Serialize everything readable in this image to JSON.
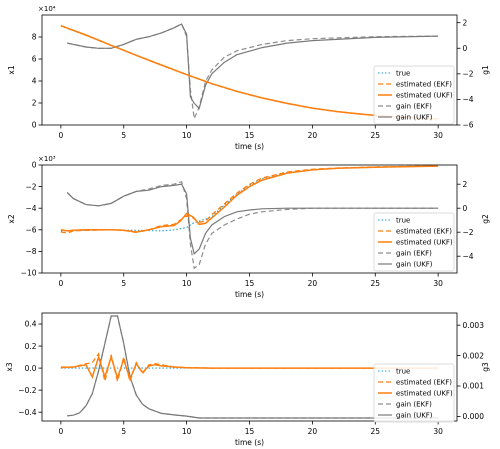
{
  "colors": {
    "true": "#1f9fd1",
    "ekf": "#ff7f0e",
    "ukf": "#ff7f0e",
    "gain_ekf": "#8c8c8c",
    "gain_ukf": "#7a7a7a"
  },
  "chart_data": [
    {
      "type": "line",
      "xlabel": "time (s)",
      "ylabel": "x1",
      "ylabel2": "g1",
      "y_offset_label": "×10⁴",
      "xlim": [
        -1.5,
        31.5
      ],
      "ylim": [
        0,
        100000
      ],
      "y2lim": [
        -6,
        2.6
      ],
      "xticks": [
        0,
        5,
        10,
        15,
        20,
        25,
        30
      ],
      "yticks": [
        0,
        20000,
        40000,
        60000,
        80000
      ],
      "ytick_labels": [
        "0",
        "2",
        "4",
        "6",
        "8"
      ],
      "y2ticks": [
        -6,
        -4,
        -2,
        0,
        2
      ],
      "legend": [
        "true",
        "estimated (EKF)",
        "estimated (UKF)",
        "gain (EKF)",
        "gain (UKF)"
      ],
      "legend_position": "lower-right",
      "series": [
        {
          "name": "true",
          "x": [
            0,
            2,
            4,
            6,
            8,
            10,
            12,
            14,
            16,
            18,
            20,
            22,
            24,
            26,
            28,
            30
          ],
          "y": [
            90000,
            81500,
            72300,
            63200,
            54300,
            45600,
            37500,
            30500,
            24500,
            19500,
            15300,
            12100,
            9600,
            7800,
            6400,
            5400
          ]
        },
        {
          "name": "estimated (EKF)",
          "x": [
            0,
            2,
            4,
            6,
            8,
            10,
            12,
            14,
            16,
            18,
            20,
            22,
            24,
            26,
            28,
            30
          ],
          "y": [
            90200,
            81700,
            72400,
            63300,
            54400,
            45700,
            37500,
            30500,
            24500,
            19500,
            15300,
            12100,
            9600,
            7800,
            6400,
            5400
          ]
        },
        {
          "name": "estimated (UKF)",
          "x": [
            0,
            2,
            4,
            6,
            8,
            10,
            12,
            14,
            16,
            18,
            20,
            22,
            24,
            26,
            28,
            30
          ],
          "y": [
            90300,
            81800,
            72500,
            63400,
            54500,
            45800,
            37600,
            30600,
            24600,
            19600,
            15400,
            12200,
            9700,
            7900,
            6500,
            5500
          ]
        },
        {
          "name": "gain (EKF)",
          "axis": "right",
          "x": [
            0.5,
            1,
            2,
            3,
            4,
            5,
            6,
            7,
            8,
            9,
            9.6,
            10,
            10.3,
            10.6,
            11,
            11.5,
            12,
            13,
            14,
            16,
            18,
            20,
            25,
            30
          ],
          "y": [
            0.4,
            0.3,
            0.1,
            0,
            0,
            0.3,
            0.7,
            0.9,
            1.2,
            1.6,
            1.9,
            0.9,
            -3.2,
            -5.5,
            -4.6,
            -2.6,
            -1.7,
            -0.7,
            -0.2,
            0.3,
            0.6,
            0.75,
            0.9,
            0.95
          ]
        },
        {
          "name": "gain (UKF)",
          "axis": "right",
          "x": [
            0.5,
            1,
            2,
            3,
            4,
            5,
            6,
            7,
            8,
            9,
            9.6,
            10,
            10.3,
            10.6,
            11,
            11.5,
            12,
            13,
            14,
            16,
            18,
            20,
            25,
            30
          ],
          "y": [
            0.4,
            0.3,
            0.1,
            0,
            0,
            0.3,
            0.7,
            0.9,
            1.2,
            1.6,
            1.9,
            1.1,
            -3.8,
            -4.3,
            -4.7,
            -2.9,
            -2.0,
            -1.1,
            -0.5,
            0.05,
            0.4,
            0.6,
            0.85,
            0.95
          ]
        }
      ]
    },
    {
      "type": "line",
      "xlabel": "time (s)",
      "ylabel": "x2",
      "ylabel2": "g2",
      "y_offset_label": "×10³",
      "xlim": [
        -1.5,
        31.5
      ],
      "ylim": [
        -10000,
        0
      ],
      "y2lim": [
        -5.4,
        3.6
      ],
      "xticks": [
        0,
        5,
        10,
        15,
        20,
        25,
        30
      ],
      "yticks": [
        -10000,
        -8000,
        -6000,
        -4000,
        -2000,
        0
      ],
      "ytick_labels": [
        "−10",
        "−8",
        "−6",
        "−4",
        "−2",
        "0"
      ],
      "y2ticks": [
        -4,
        -2,
        0,
        2
      ],
      "legend": [
        "true",
        "estimated (EKF)",
        "estimated (UKF)",
        "gain (EKF)",
        "gain (UKF)"
      ],
      "legend_position": "center-right",
      "series": [
        {
          "name": "true",
          "x": [
            0,
            2,
            4,
            6,
            8,
            9,
            10,
            10.5,
            11,
            12,
            13,
            14,
            15,
            16,
            18,
            20,
            22,
            25,
            30
          ],
          "y": [
            -6100,
            -6050,
            -6000,
            -6050,
            -6100,
            -6000,
            -5800,
            -5400,
            -5200,
            -4800,
            -3700,
            -2700,
            -1900,
            -1300,
            -700,
            -450,
            -300,
            -200,
            -100
          ]
        },
        {
          "name": "estimated (EKF)",
          "x": [
            0,
            0.5,
            1,
            2,
            4,
            5,
            6,
            7,
            8,
            9,
            9.5,
            10,
            10.5,
            11,
            11.5,
            12,
            13,
            14,
            15,
            16,
            18,
            20,
            22,
            25,
            30
          ],
          "y": [
            -6200,
            -6300,
            -6100,
            -6050,
            -6000,
            -6050,
            -6250,
            -6000,
            -5600,
            -5500,
            -5100,
            -4700,
            -4900,
            -5300,
            -5200,
            -4600,
            -3600,
            -2600,
            -1800,
            -1200,
            -650,
            -400,
            -280,
            -180,
            -90
          ]
        },
        {
          "name": "estimated (UKF)",
          "x": [
            0,
            0.5,
            1,
            2,
            4,
            5,
            6,
            7,
            8,
            9,
            9.5,
            10,
            10.5,
            11,
            11.5,
            12,
            13,
            14,
            15,
            16,
            18,
            20,
            22,
            25,
            30
          ],
          "y": [
            -6000,
            -6100,
            -6050,
            -6000,
            -6000,
            -6050,
            -6200,
            -6000,
            -5700,
            -5600,
            -5200,
            -4500,
            -4800,
            -5500,
            -5400,
            -4900,
            -3900,
            -2800,
            -2000,
            -1400,
            -750,
            -450,
            -300,
            -200,
            -100
          ]
        },
        {
          "name": "gain (EKF)",
          "axis": "right",
          "x": [
            0.5,
            1,
            2,
            3,
            4,
            5,
            6,
            7,
            8,
            9,
            9.6,
            10,
            10.3,
            10.6,
            11,
            11.5,
            12,
            13,
            14,
            15,
            16,
            18,
            20,
            25,
            30
          ],
          "y": [
            1.3,
            0.8,
            0.3,
            0.2,
            0.4,
            1.0,
            1.4,
            1.6,
            1.9,
            2.0,
            2.2,
            0.8,
            -3.0,
            -5.0,
            -4.7,
            -3.0,
            -2.1,
            -1.4,
            -0.9,
            -0.5,
            -0.3,
            -0.1,
            0,
            0,
            0
          ]
        },
        {
          "name": "gain (UKF)",
          "axis": "right",
          "x": [
            0.5,
            1,
            2,
            3,
            4,
            5,
            6,
            7,
            8,
            9,
            9.6,
            10,
            10.3,
            10.6,
            11,
            11.5,
            12,
            13,
            14,
            15,
            16,
            18,
            20,
            25,
            30
          ],
          "y": [
            1.3,
            0.8,
            0.3,
            0.2,
            0.4,
            1.0,
            1.4,
            1.5,
            1.8,
            1.9,
            2.0,
            1.2,
            -2.5,
            -3.8,
            -3.4,
            -2.1,
            -1.4,
            -0.7,
            -0.3,
            -0.15,
            -0.05,
            0,
            0,
            0,
            0
          ]
        }
      ]
    },
    {
      "type": "line",
      "xlabel": "time (s)",
      "ylabel": "x3",
      "ylabel2": "g3",
      "y_offset_label": "",
      "xlim": [
        -1.5,
        31.5
      ],
      "ylim": [
        -0.48,
        0.5
      ],
      "y2lim": [
        -0.00015,
        0.0034
      ],
      "xticks": [
        0,
        5,
        10,
        15,
        20,
        25,
        30
      ],
      "yticks": [
        -0.4,
        -0.2,
        0.0,
        0.2,
        0.4
      ],
      "ytick_labels": [
        "−0.4",
        "−0.2",
        "0.0",
        "0.2",
        "0.4"
      ],
      "y2ticks": [
        0,
        0.001,
        0.002,
        0.003
      ],
      "y2tick_labels": [
        "0.000",
        "0.001",
        "0.002",
        "0.003"
      ],
      "legend": [
        "true",
        "estimated (EKF)",
        "estimated (UKF)",
        "gain (EKF)",
        "gain (UKF)"
      ],
      "legend_position": "lower-right",
      "series": [
        {
          "name": "true",
          "x": [
            0,
            30
          ],
          "y": [
            0,
            0
          ]
        },
        {
          "name": "estimated (EKF)",
          "x": [
            0,
            1,
            2,
            2.5,
            3,
            3.5,
            4,
            4.5,
            5,
            5.5,
            6,
            6.5,
            7,
            7.5,
            8,
            8.5,
            9,
            10,
            12,
            15,
            30
          ],
          "y": [
            0.01,
            0.01,
            0.04,
            0.05,
            0.13,
            -0.12,
            0.12,
            -0.12,
            0.1,
            -0.12,
            0.05,
            -0.05,
            0.03,
            0.04,
            0.03,
            0.02,
            0.01,
            0.005,
            0,
            0,
            0
          ]
        },
        {
          "name": "estimated (UKF)",
          "x": [
            0,
            1,
            2,
            2.5,
            3,
            3.5,
            4,
            4.5,
            5,
            5.5,
            6,
            6.5,
            7,
            7.5,
            8,
            8.5,
            9,
            10,
            12,
            15,
            30
          ],
          "y": [
            0.005,
            0.01,
            0.03,
            -0.08,
            0.1,
            -0.08,
            0.1,
            -0.09,
            0.08,
            -0.1,
            0.04,
            -0.04,
            0.02,
            0.03,
            0.02,
            0.015,
            0.01,
            0.004,
            0,
            0,
            0
          ]
        },
        {
          "name": "gain (EKF)",
          "axis": "right",
          "x": [
            0.5,
            1,
            1.5,
            2,
            2.5,
            3,
            3.5,
            4,
            4.5,
            5,
            5.5,
            6,
            6.5,
            7,
            8,
            9,
            10,
            11,
            12,
            15,
            20,
            25,
            30
          ],
          "y": [
            2e-05,
            4e-05,
            0.00012,
            0.00035,
            0.00075,
            0.0015,
            0.0024,
            0.0033,
            0.0033,
            0.0024,
            0.0013,
            0.0007,
            0.0004,
            0.00025,
            0.0001,
            5e-05,
            1e-05,
            -5e-05,
            -5e-05,
            -5e-05,
            -5e-05,
            -5e-05,
            -5e-05
          ]
        },
        {
          "name": "gain (UKF)",
          "axis": "right",
          "x": [
            0.5,
            1,
            1.5,
            2,
            2.5,
            3,
            3.5,
            4,
            4.5,
            5,
            5.5,
            6,
            6.5,
            7,
            8,
            9,
            10,
            11,
            12,
            15,
            20,
            25,
            30
          ],
          "y": [
            2e-05,
            4e-05,
            0.00012,
            0.00035,
            0.00075,
            0.0015,
            0.0024,
            0.0033,
            0.0033,
            0.0024,
            0.0013,
            0.0007,
            0.0004,
            0.00025,
            0.0001,
            5e-05,
            1e-05,
            -5e-05,
            -5e-05,
            -5e-05,
            -5e-05,
            -5e-05,
            -5e-05
          ]
        }
      ]
    }
  ]
}
